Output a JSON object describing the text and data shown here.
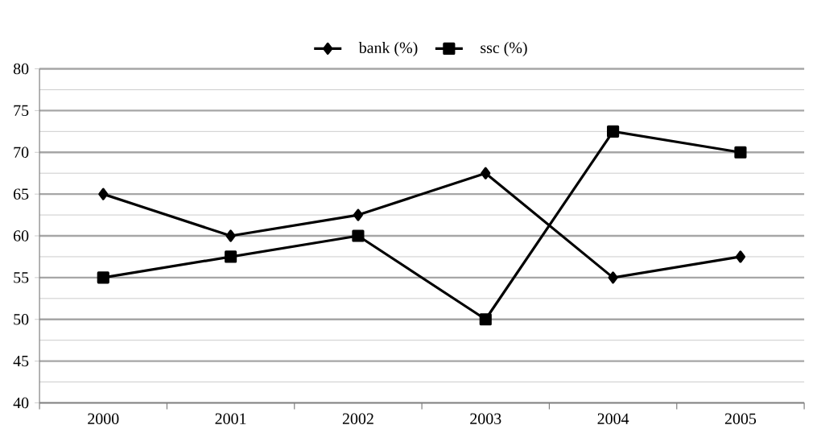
{
  "chart_data": {
    "type": "line",
    "categories": [
      "2000",
      "2001",
      "2002",
      "2003",
      "2004",
      "2005"
    ],
    "series": [
      {
        "name": "bank (%)",
        "color": "#000000",
        "marker": "diamond",
        "values": [
          65,
          60,
          62.5,
          67.5,
          55,
          57.5
        ]
      },
      {
        "name": "ssc (%)",
        "color": "#000000",
        "marker": "square",
        "values": [
          55,
          57.5,
          60,
          50,
          72.5,
          70
        ]
      }
    ],
    "ylim": [
      40,
      80
    ],
    "yticks": [
      40,
      45,
      50,
      55,
      60,
      65,
      70,
      75,
      80
    ],
    "grid": "y",
    "legend": "top",
    "line_style": "solid"
  }
}
